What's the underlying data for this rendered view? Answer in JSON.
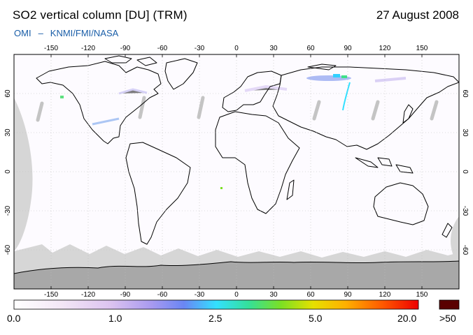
{
  "header": {
    "title": "SO2 vertical column [DU] (TRM)",
    "date": "27 August 2008",
    "credit_left": "OMI",
    "credit_sep": "–",
    "credit_right": "KNMI/FMI/NASA"
  },
  "map": {
    "lon_range": [
      -180,
      180
    ],
    "lat_range": [
      -90,
      90
    ],
    "lon_ticks_top": [
      "-150",
      "-120",
      "-90",
      "-60",
      "-30",
      "0",
      "30",
      "60",
      "90",
      "120",
      "150"
    ],
    "lon_ticks_bottom": [
      "-150",
      "-120",
      "-90",
      "-60",
      "-30",
      "0",
      "30",
      "60",
      "90",
      "120",
      "150"
    ],
    "lat_ticks": [
      "60",
      "30",
      "0",
      "-30",
      "-60"
    ],
    "colors": {
      "land_outline": "#000000",
      "missing_data": "#d6d6d6",
      "antarctica": "#a8a8a8",
      "gridline": "#bbbbbb"
    }
  },
  "colorbar": {
    "labels": [
      "0.0",
      "1.0",
      "2.5",
      "5.0",
      "20.0",
      ">50"
    ],
    "overflow_color": "#5a0000"
  }
}
